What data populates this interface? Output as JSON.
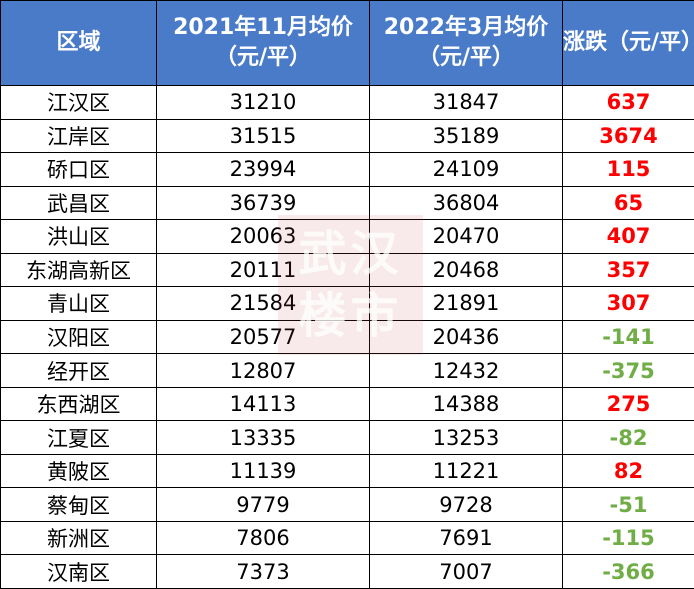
{
  "header": {
    "columns": [
      "区域",
      "2021年11月均价（元/平）",
      "2022年3月均价（元/平）",
      "涨跌（元/平）"
    ]
  },
  "table": {
    "rows": [
      [
        "江汉区",
        31210,
        31847,
        637
      ],
      [
        "江岸区",
        31515,
        35189,
        3674
      ],
      [
        "硚口区",
        23994,
        24109,
        115
      ],
      [
        "武昌区",
        36739,
        36804,
        65
      ],
      [
        "洪山区",
        20063,
        20470,
        407
      ],
      [
        "东湖高新区",
        20111,
        20468,
        357
      ],
      [
        "青山区",
        21584,
        21891,
        307
      ],
      [
        "汉阳区",
        20577,
        20436,
        -141
      ],
      [
        "经开区",
        12807,
        12432,
        -375
      ],
      [
        "东西湖区",
        14113,
        14388,
        275
      ],
      [
        "江夏区",
        13335,
        13253,
        -82
      ],
      [
        "黄陂区",
        11139,
        11221,
        82
      ],
      [
        "蔡甸区",
        9779,
        9728,
        -51
      ],
      [
        "新洲区",
        7806,
        7691,
        -115
      ],
      [
        "汉南区",
        7373,
        7007,
        -366
      ]
    ],
    "header_color": "#4a7bc9",
    "rise_color": "#ff0000",
    "fall_color": "#70ad47"
  },
  "watermark": "武汉楼市"
}
